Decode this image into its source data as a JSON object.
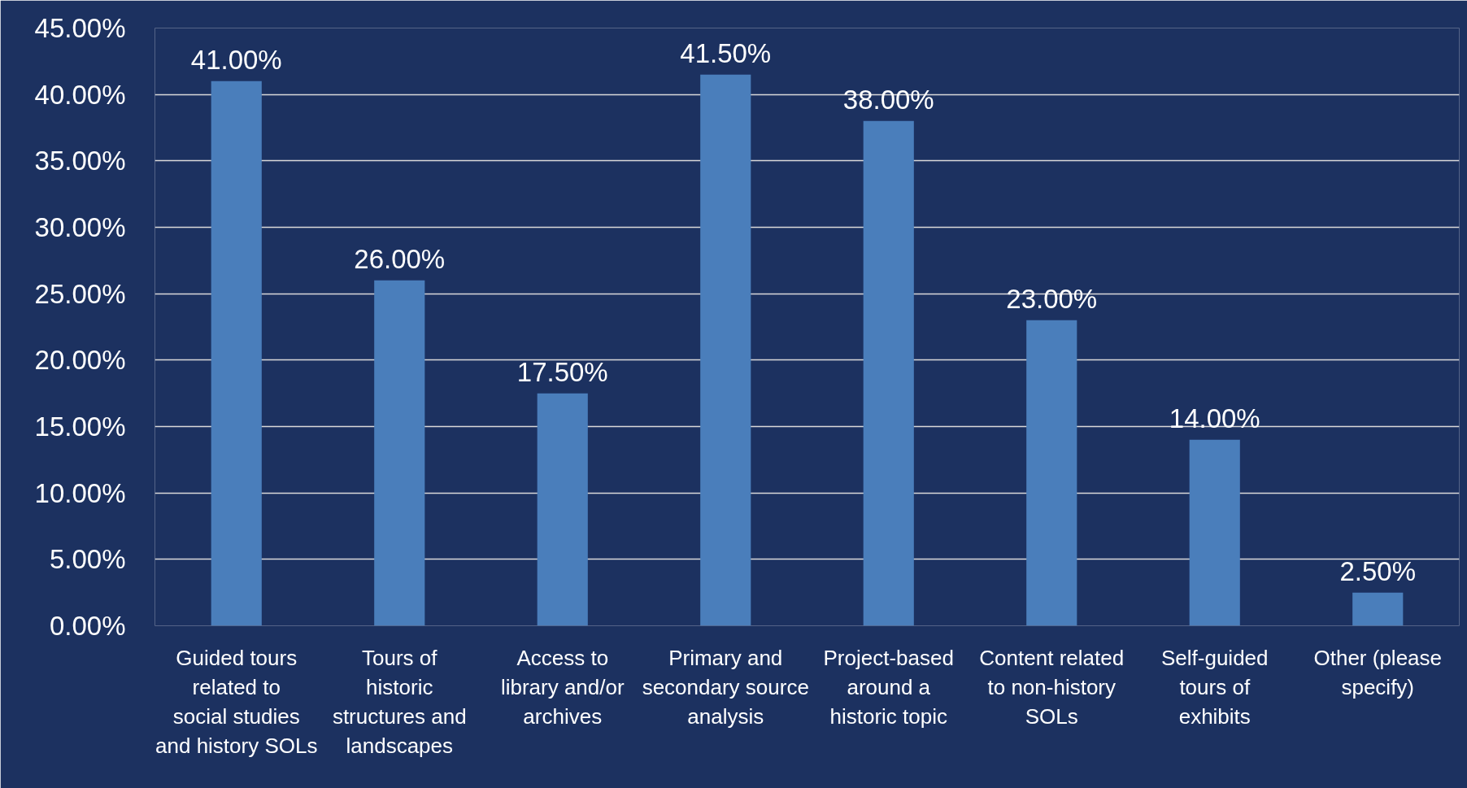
{
  "chart_data": {
    "type": "bar",
    "categories": [
      "Guided tours related to social studies and history SOLs",
      "Tours of historic structures and landscapes",
      "Access to library and/or archives",
      "Primary and secondary source analysis",
      "Project-based around a historic topic",
      "Content related to non-history SOLs",
      "Self-guided tours of exhibits",
      "Other (please specify)"
    ],
    "values": [
      41,
      26,
      17.5,
      41.5,
      38,
      23,
      14,
      2.5
    ],
    "value_labels": [
      "41.00%",
      "26.00%",
      "17.50%",
      "41.50%",
      "38.00%",
      "23.00%",
      "14.00%",
      "2.50%"
    ],
    "color": "#4a7ebb",
    "ylim": [
      0,
      45
    ],
    "yticks": [
      {
        "value": 0,
        "label": "0.00%"
      },
      {
        "value": 5,
        "label": "5.00%"
      },
      {
        "value": 10,
        "label": "10.00%"
      },
      {
        "value": 15,
        "label": "15.00%"
      },
      {
        "value": 20,
        "label": "20.00%"
      },
      {
        "value": 25,
        "label": "25.00%"
      },
      {
        "value": 30,
        "label": "30.00%"
      },
      {
        "value": 35,
        "label": "35.00%"
      },
      {
        "value": 40,
        "label": "40.00%"
      },
      {
        "value": 45,
        "label": "45.00%"
      }
    ],
    "grid": "y"
  }
}
